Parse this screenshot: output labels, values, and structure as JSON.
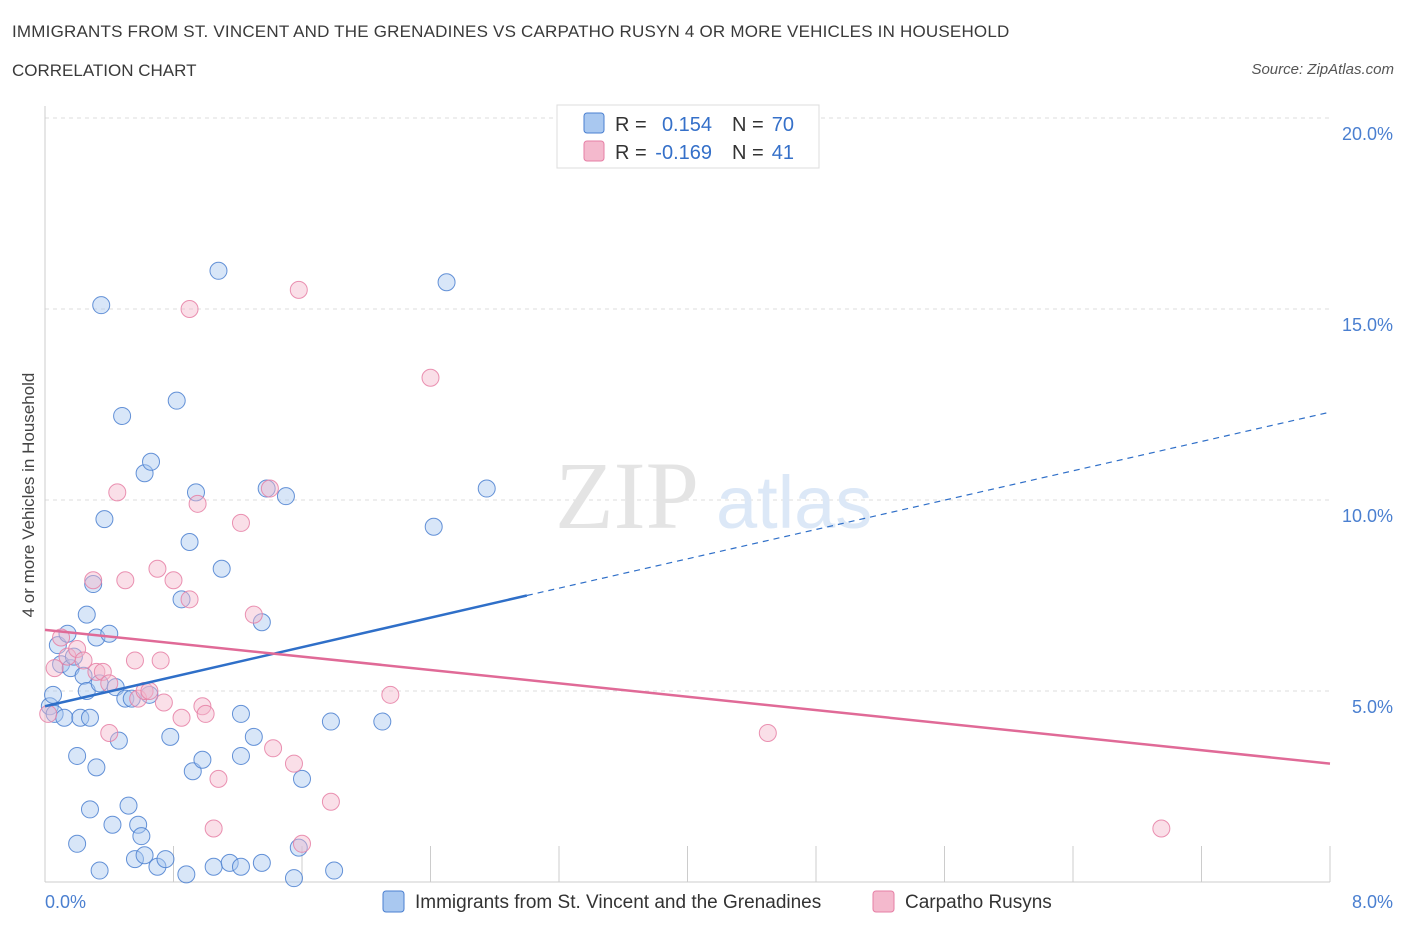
{
  "header": {
    "title": "IMMIGRANTS FROM ST. VINCENT AND THE GRENADINES VS CARPATHO RUSYN 4 OR MORE VEHICLES IN HOUSEHOLD",
    "subtitle": "CORRELATION CHART",
    "source": "Source: ZipAtlas.com"
  },
  "watermark": {
    "zip": "ZIP",
    "atlas": "atlas"
  },
  "colors": {
    "blue": "#4a7fd0",
    "blue_fill": "#a9c8f0",
    "blue_line": "#2f6fc8",
    "pink": "#e67fa5",
    "pink_fill": "#f4b9cd",
    "pink_line": "#e06a97",
    "grid": "#dddddd"
  },
  "legend": {
    "rows": [
      {
        "r_label": "R =",
        "r_value": "0.154",
        "n_label": "N =",
        "n_value": "70"
      },
      {
        "r_label": "R =",
        "r_value": "-0.169",
        "n_label": "N =",
        "n_value": "41"
      }
    ]
  },
  "chart_data": {
    "type": "scatter",
    "title": "IMMIGRANTS FROM ST. VINCENT AND THE GRENADINES VS CARPATHO RUSYN 4 OR MORE VEHICLES IN HOUSEHOLD",
    "ylabel": "4 or more Vehicles in Household",
    "xlim": [
      0,
      8
    ],
    "ylim": [
      0,
      20
    ],
    "x_tick_labels": [
      "0.0%",
      "8.0%"
    ],
    "y_tick_values": [
      5,
      10,
      15,
      20
    ],
    "y_tick_labels": [
      "5.0%",
      "10.0%",
      "15.0%",
      "20.0%"
    ],
    "grid": true,
    "series": [
      {
        "name": "Immigrants from St. Vincent and the Grenadines",
        "trend": {
          "x": [
            0,
            3.0
          ],
          "y": [
            4.6,
            7.5
          ],
          "dashed_to": [
            8.0,
            12.3
          ]
        },
        "points": [
          [
            0.03,
            4.6
          ],
          [
            0.05,
            4.9
          ],
          [
            0.06,
            4.4
          ],
          [
            0.08,
            6.2
          ],
          [
            0.1,
            5.7
          ],
          [
            0.12,
            4.3
          ],
          [
            0.14,
            6.5
          ],
          [
            0.16,
            5.6
          ],
          [
            0.18,
            5.9
          ],
          [
            0.2,
            1.0
          ],
          [
            0.2,
            3.3
          ],
          [
            0.22,
            4.3
          ],
          [
            0.24,
            5.4
          ],
          [
            0.26,
            5.0
          ],
          [
            0.28,
            4.3
          ],
          [
            0.26,
            7.0
          ],
          [
            0.28,
            1.9
          ],
          [
            0.3,
            7.8
          ],
          [
            0.32,
            6.4
          ],
          [
            0.34,
            5.2
          ],
          [
            0.32,
            3.0
          ],
          [
            0.34,
            0.3
          ],
          [
            0.35,
            15.1
          ],
          [
            0.37,
            9.5
          ],
          [
            0.4,
            6.5
          ],
          [
            0.42,
            1.5
          ],
          [
            0.44,
            5.1
          ],
          [
            0.46,
            3.7
          ],
          [
            0.48,
            12.2
          ],
          [
            0.5,
            4.8
          ],
          [
            0.52,
            2.0
          ],
          [
            0.54,
            4.8
          ],
          [
            0.56,
            0.6
          ],
          [
            0.58,
            1.5
          ],
          [
            0.6,
            1.2
          ],
          [
            0.62,
            0.7
          ],
          [
            0.62,
            10.7
          ],
          [
            0.65,
            4.9
          ],
          [
            0.66,
            11.0
          ],
          [
            0.7,
            0.4
          ],
          [
            0.75,
            0.6
          ],
          [
            0.78,
            3.8
          ],
          [
            0.82,
            12.6
          ],
          [
            0.85,
            7.4
          ],
          [
            0.88,
            0.2
          ],
          [
            0.9,
            8.9
          ],
          [
            0.92,
            2.9
          ],
          [
            0.94,
            10.2
          ],
          [
            0.98,
            3.2
          ],
          [
            1.05,
            0.4
          ],
          [
            1.08,
            16.0
          ],
          [
            1.1,
            8.2
          ],
          [
            1.15,
            0.5
          ],
          [
            1.22,
            0.4
          ],
          [
            1.22,
            3.3
          ],
          [
            1.22,
            4.4
          ],
          [
            1.3,
            3.8
          ],
          [
            1.35,
            0.5
          ],
          [
            1.35,
            6.8
          ],
          [
            1.38,
            10.3
          ],
          [
            1.5,
            10.1
          ],
          [
            1.55,
            0.1
          ],
          [
            1.58,
            0.9
          ],
          [
            1.6,
            2.7
          ],
          [
            1.78,
            4.2
          ],
          [
            1.8,
            0.3
          ],
          [
            2.1,
            4.2
          ],
          [
            2.42,
            9.3
          ],
          [
            2.5,
            15.7
          ],
          [
            2.75,
            10.3
          ]
        ]
      },
      {
        "name": "Carpatho Rusyns",
        "trend": {
          "x": [
            0,
            8.0
          ],
          "y": [
            6.6,
            3.1
          ]
        },
        "points": [
          [
            0.02,
            4.4
          ],
          [
            0.06,
            5.6
          ],
          [
            0.1,
            6.4
          ],
          [
            0.14,
            5.9
          ],
          [
            0.2,
            6.1
          ],
          [
            0.24,
            5.8
          ],
          [
            0.3,
            7.9
          ],
          [
            0.32,
            5.5
          ],
          [
            0.36,
            5.5
          ],
          [
            0.4,
            5.2
          ],
          [
            0.4,
            3.9
          ],
          [
            0.45,
            10.2
          ],
          [
            0.5,
            7.9
          ],
          [
            0.56,
            5.8
          ],
          [
            0.58,
            4.8
          ],
          [
            0.62,
            5.0
          ],
          [
            0.65,
            5.0
          ],
          [
            0.7,
            8.2
          ],
          [
            0.72,
            5.8
          ],
          [
            0.74,
            4.7
          ],
          [
            0.8,
            7.9
          ],
          [
            0.85,
            4.3
          ],
          [
            0.9,
            7.4
          ],
          [
            0.9,
            15.0
          ],
          [
            0.95,
            9.9
          ],
          [
            0.98,
            4.6
          ],
          [
            1.0,
            4.4
          ],
          [
            1.05,
            1.4
          ],
          [
            1.08,
            2.7
          ],
          [
            1.22,
            9.4
          ],
          [
            1.3,
            7.0
          ],
          [
            1.4,
            10.3
          ],
          [
            1.42,
            3.5
          ],
          [
            1.55,
            3.1
          ],
          [
            1.58,
            15.5
          ],
          [
            1.6,
            1.0
          ],
          [
            1.78,
            2.1
          ],
          [
            2.15,
            4.9
          ],
          [
            2.4,
            13.2
          ],
          [
            4.5,
            3.9
          ],
          [
            6.95,
            1.4
          ]
        ]
      }
    ]
  }
}
